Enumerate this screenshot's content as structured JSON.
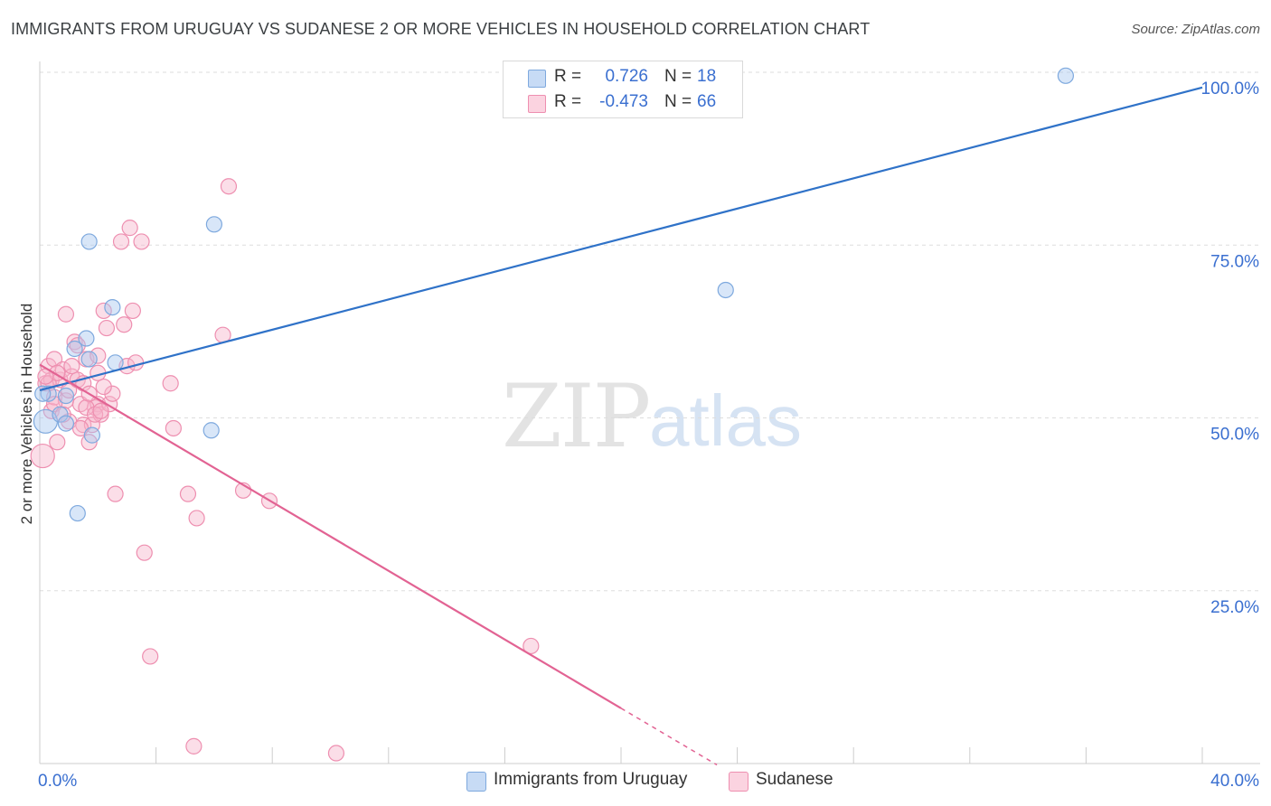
{
  "title": "IMMIGRANTS FROM URUGUAY VS SUDANESE 2 OR MORE VEHICLES IN HOUSEHOLD CORRELATION CHART",
  "source": "Source: ZipAtlas.com",
  "watermark": {
    "zip": "ZIP",
    "atlas": "atlas"
  },
  "legend_top": {
    "rows": [
      {
        "r_label": "R =",
        "r_value": "0.726",
        "n_label": "N =",
        "n_value": "18",
        "color": "#a8c8f0"
      },
      {
        "r_label": "R =",
        "r_value": "-0.473",
        "n_label": "N =",
        "n_value": "66",
        "color": "#f7b6cb"
      }
    ]
  },
  "legend_bottom": [
    {
      "label": "Immigrants from Uruguay",
      "color": "#a8c8f0"
    },
    {
      "label": "Sudanese",
      "color": "#f7b6cb"
    }
  ],
  "colors": {
    "blue_fill": "#a8c8f0",
    "blue_stroke": "#7ea9de",
    "blue_line": "#2f72c8",
    "pink_fill": "#f7b6cb",
    "pink_stroke": "#ee8fb0",
    "pink_line": "#e26393",
    "grid": "#dddddd",
    "tick_text": "#3a6fd0"
  },
  "chart_data": {
    "type": "scatter",
    "title": "IMMIGRANTS FROM URUGUAY VS SUDANESE 2 OR MORE VEHICLES IN HOUSEHOLD CORRELATION CHART",
    "xlabel": "",
    "ylabel": "2 or more Vehicles in Household",
    "xlim": [
      0,
      40
    ],
    "ylim": [
      0,
      100
    ],
    "x_tick_labels": [
      "0.0%",
      "40.0%"
    ],
    "y_tick_labels": [
      "25.0%",
      "50.0%",
      "75.0%",
      "100.0%"
    ],
    "y_ticks": [
      25,
      50,
      75,
      100
    ],
    "series": [
      {
        "name": "Immigrants from Uruguay",
        "points": [
          [
            0.2,
            49.5
          ],
          [
            0.3,
            53.5
          ],
          [
            0.7,
            50.5
          ],
          [
            0.9,
            49.2
          ],
          [
            0.9,
            53.2
          ],
          [
            1.2,
            60
          ],
          [
            1.6,
            61.5
          ],
          [
            1.7,
            58.5
          ],
          [
            1.8,
            47.5
          ],
          [
            1.3,
            36.2
          ],
          [
            1.7,
            75.5
          ],
          [
            2.5,
            66
          ],
          [
            2.6,
            58
          ],
          [
            6.0,
            78
          ],
          [
            5.9,
            48.2
          ],
          [
            23.6,
            68.5
          ],
          [
            35.3,
            99.5
          ],
          [
            0.1,
            53.5
          ]
        ],
        "trend": {
          "x0": 0,
          "y0": 54.0,
          "x1": 40,
          "y1": 97.8,
          "dashed_from": null
        }
      },
      {
        "name": "Sudanese",
        "points": [
          [
            0.1,
            44.5
          ],
          [
            0.2,
            55.0
          ],
          [
            0.3,
            57.5
          ],
          [
            0.4,
            51.0
          ],
          [
            0.4,
            55.5
          ],
          [
            0.5,
            53.0
          ],
          [
            0.5,
            58.5
          ],
          [
            0.6,
            46.5
          ],
          [
            0.7,
            55.5
          ],
          [
            0.8,
            57.0
          ],
          [
            0.9,
            65.0
          ],
          [
            0.9,
            52.5
          ],
          [
            1.0,
            54.0
          ],
          [
            1.1,
            56.0
          ],
          [
            1.2,
            61.0
          ],
          [
            1.3,
            55.5
          ],
          [
            1.4,
            52.0
          ],
          [
            1.5,
            49.0
          ],
          [
            1.5,
            55.0
          ],
          [
            1.6,
            58.5
          ],
          [
            1.7,
            46.5
          ],
          [
            1.8,
            49.0
          ],
          [
            1.9,
            51.5
          ],
          [
            2.0,
            52.0
          ],
          [
            2.0,
            56.5
          ],
          [
            2.1,
            50.5
          ],
          [
            2.2,
            65.5
          ],
          [
            2.3,
            63.0
          ],
          [
            2.4,
            52.0
          ],
          [
            2.5,
            53.5
          ],
          [
            2.6,
            39.0
          ],
          [
            2.8,
            75.5
          ],
          [
            2.9,
            63.5
          ],
          [
            3.0,
            57.5
          ],
          [
            3.1,
            77.5
          ],
          [
            3.2,
            65.5
          ],
          [
            3.3,
            58.0
          ],
          [
            3.5,
            75.5
          ],
          [
            3.6,
            30.5
          ],
          [
            4.5,
            55.0
          ],
          [
            4.6,
            48.5
          ],
          [
            5.1,
            39.0
          ],
          [
            5.4,
            35.5
          ],
          [
            6.3,
            62.0
          ],
          [
            6.5,
            83.5
          ],
          [
            7.0,
            39.5
          ],
          [
            7.9,
            38.0
          ],
          [
            3.8,
            15.5
          ],
          [
            5.3,
            2.5
          ],
          [
            10.2,
            1.5
          ],
          [
            16.9,
            17.0
          ],
          [
            0.3,
            55.0
          ],
          [
            0.6,
            56.5
          ],
          [
            1.0,
            49.5
          ],
          [
            1.3,
            60.5
          ],
          [
            1.6,
            51.5
          ],
          [
            1.9,
            50.5
          ],
          [
            2.0,
            59.0
          ],
          [
            0.5,
            52.0
          ],
          [
            0.8,
            50.5
          ],
          [
            1.1,
            57.5
          ],
          [
            1.4,
            48.5
          ],
          [
            1.7,
            53.5
          ],
          [
            2.1,
            51.0
          ],
          [
            2.2,
            54.5
          ],
          [
            0.2,
            56.0
          ]
        ],
        "trend": {
          "x0": 0,
          "y0": 57.7,
          "x1": 20,
          "y1": 8.0,
          "dashed_from": 20,
          "dashed_to": 23.3
        }
      }
    ]
  }
}
